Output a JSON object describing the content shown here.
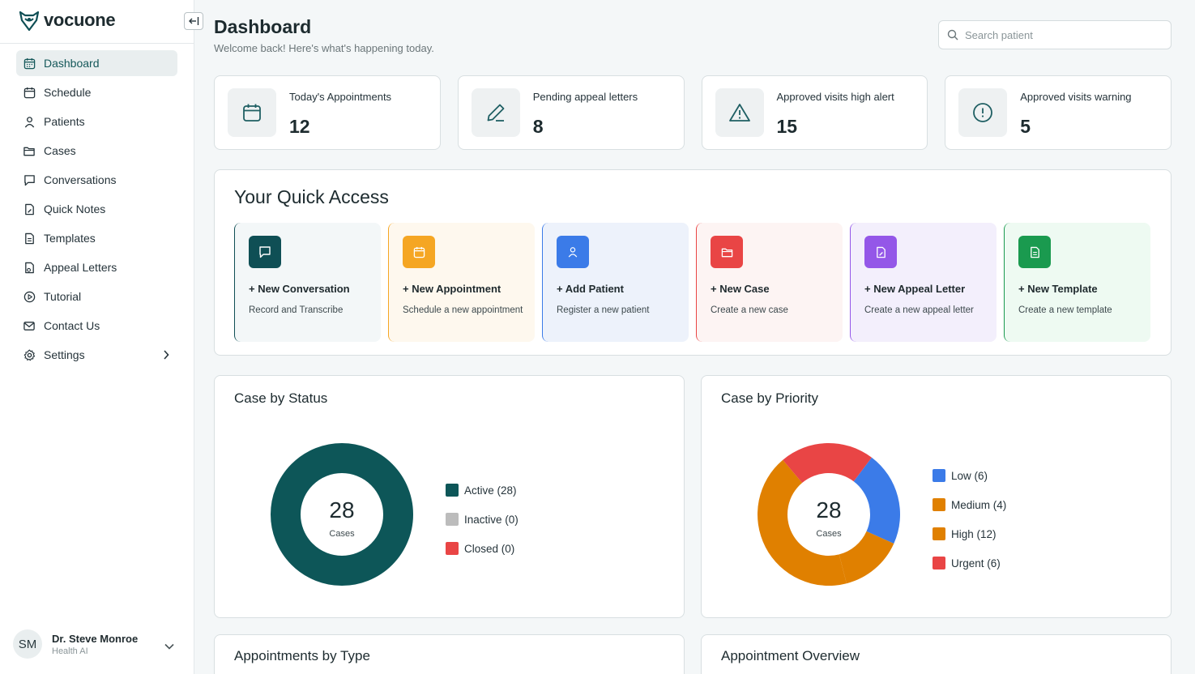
{
  "app": {
    "name": "vocuone"
  },
  "nav": {
    "items": [
      {
        "label": "Dashboard",
        "icon": "calendar-grid-icon"
      },
      {
        "label": "Schedule",
        "icon": "calendar-icon"
      },
      {
        "label": "Patients",
        "icon": "user-icon"
      },
      {
        "label": "Cases",
        "icon": "folder-icon"
      },
      {
        "label": "Conversations",
        "icon": "message-icon"
      },
      {
        "label": "Quick Notes",
        "icon": "note-icon"
      },
      {
        "label": "Templates",
        "icon": "document-icon"
      },
      {
        "label": "Appeal Letters",
        "icon": "appeal-file-icon"
      },
      {
        "label": "Tutorial",
        "icon": "play-circle-icon"
      },
      {
        "label": "Contact Us",
        "icon": "mail-icon"
      },
      {
        "label": "Settings",
        "icon": "gear-icon"
      }
    ]
  },
  "user": {
    "initials": "SM",
    "name": "Dr. Steve Monroe",
    "role": "Health AI"
  },
  "header": {
    "title": "Dashboard",
    "subtitle": "Welcome back! Here's what's happening today.",
    "search_placeholder": "Search patient"
  },
  "stats": [
    {
      "label": "Today's Appointments",
      "value": "12",
      "icon": "calendar-icon"
    },
    {
      "label": "Pending appeal letters",
      "value": "8",
      "icon": "pencil-icon"
    },
    {
      "label": "Approved visits high alert",
      "value": "15",
      "icon": "warning-triangle-icon"
    },
    {
      "label": "Approved visits warning",
      "value": "5",
      "icon": "alert-circle-icon"
    }
  ],
  "quick_access": {
    "title": "Your Quick Access",
    "items": [
      {
        "name": "+ New Conversation",
        "desc": "Record and Transcribe",
        "color": "#0f4f55",
        "bg": "#f3f7f8"
      },
      {
        "name": "+ New Appointment",
        "desc": "Schedule a new appointment",
        "color": "#f5a623",
        "bg": "#fef8ee"
      },
      {
        "name": "+ Add Patient",
        "desc": "Register a new patient",
        "color": "#3b7be8",
        "bg": "#edf2fb"
      },
      {
        "name": "+ New Case",
        "desc": "Create a new case",
        "color": "#e94545",
        "bg": "#fdf4f3"
      },
      {
        "name": "+ New Appeal Letter",
        "desc": "Create a new appeal letter",
        "color": "#9457e8",
        "bg": "#f3effc"
      },
      {
        "name": "+ New Template",
        "desc": "Create a new template",
        "color": "#1a9a4f",
        "bg": "#eefaf2"
      }
    ]
  },
  "charts": {
    "status": {
      "title": "Case by Status",
      "total": "28",
      "unit": "Cases",
      "legend": [
        "Active (28)",
        "Inactive (0)",
        "Closed (0)"
      ]
    },
    "priority": {
      "title": "Case by Priority",
      "total": "28",
      "unit": "Cases",
      "legend": [
        "Low (6)",
        "Medium (4)",
        "High (12)",
        "Urgent (6)"
      ]
    }
  },
  "chart_data": [
    {
      "type": "pie",
      "title": "Case by Status",
      "categories": [
        "Active",
        "Inactive",
        "Closed"
      ],
      "values": [
        28,
        0,
        0
      ],
      "colors": [
        "#0d5658",
        "#bcbcbc",
        "#e94545"
      ],
      "legend_position": "right"
    },
    {
      "type": "pie",
      "title": "Case by Priority",
      "categories": [
        "Low",
        "Medium",
        "High",
        "Urgent"
      ],
      "values": [
        6,
        4,
        12,
        6
      ],
      "colors": [
        "#3b7be8",
        "#e08000",
        "#e08000",
        "#e94545"
      ],
      "legend_position": "right"
    }
  ],
  "bottom_cards": [
    "Appointments by Type",
    "Appointment Overview"
  ]
}
